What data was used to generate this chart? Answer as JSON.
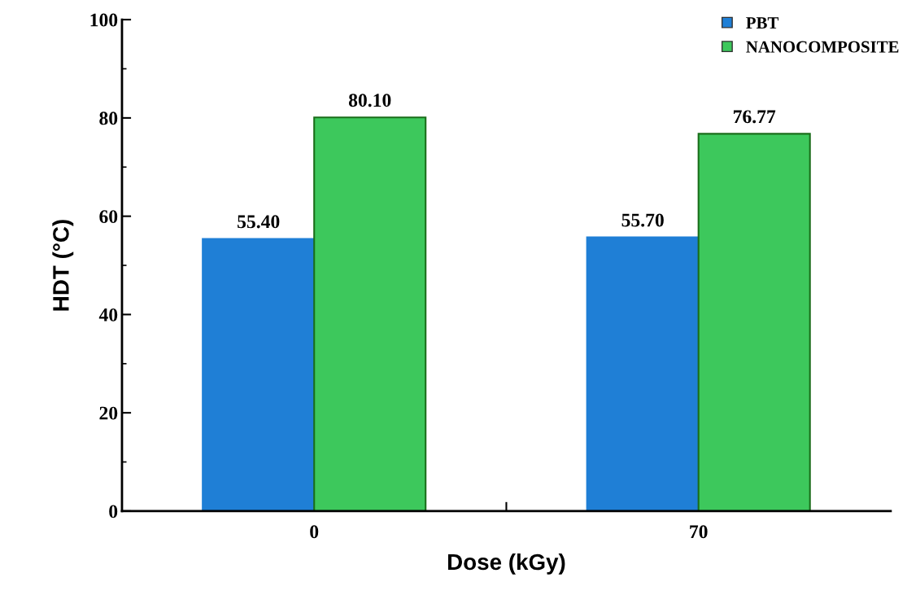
{
  "chart_data": {
    "type": "bar",
    "xlabel": "Dose (kGy)",
    "ylabel": "HDT (°C)",
    "categories": [
      "0",
      "70"
    ],
    "series": [
      {
        "name": "PBT",
        "color": "#1f7fd6",
        "values": [
          55.4,
          55.7
        ],
        "value_labels": [
          "55.40",
          "55.70"
        ]
      },
      {
        "name": "NANOCOMPOSITE",
        "color": "#3dc85c",
        "values": [
          80.1,
          76.77
        ],
        "value_labels": [
          "80.10",
          "76.77"
        ]
      }
    ],
    "ylim": [
      0,
      100
    ],
    "yticks": [
      0,
      20,
      40,
      60,
      80,
      100
    ],
    "legend": "top right",
    "grid": false
  }
}
